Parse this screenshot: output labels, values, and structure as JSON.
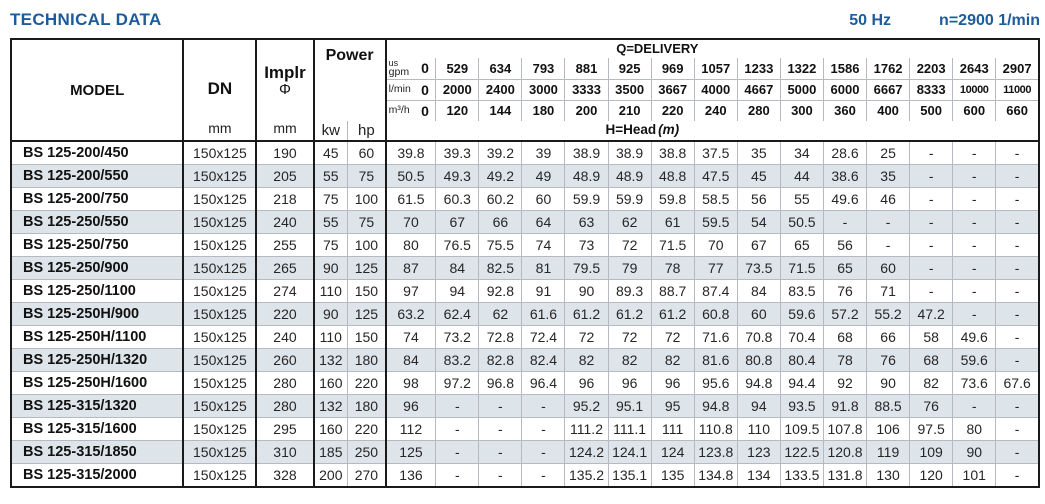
{
  "page": {
    "title": "TECHNICAL DATA",
    "frequency": "50 Hz",
    "speed": "n=2900 1/min"
  },
  "colors": {
    "accent_blue": "#1d5b9b",
    "row_stripe": "#dde4ea",
    "grid_line": "#b5bac0",
    "border_dark": "#1a1a1a"
  },
  "table": {
    "model_header": "MODEL",
    "dn_header": "DN",
    "dn_unit": "mm",
    "impeller_header": "Implr",
    "impeller_symbol": "Φ",
    "impeller_unit": "mm",
    "power_header": "Power",
    "power_units": [
      "kw",
      "hp"
    ],
    "delivery_header": "Q=DELIVERY",
    "head_label": "H=Head",
    "head_unit": "(m)",
    "flow_rows": [
      {
        "unit_top": "us",
        "unit": "gpm",
        "values": [
          "0",
          "529",
          "634",
          "793",
          "881",
          "925",
          "969",
          "1057",
          "1233",
          "1322",
          "1586",
          "1762",
          "2203",
          "2643",
          "2907"
        ]
      },
      {
        "unit": "l/min",
        "values": [
          "0",
          "2000",
          "2400",
          "3000",
          "3333",
          "3500",
          "3667",
          "4000",
          "4667",
          "5000",
          "6000",
          "6667",
          "8333",
          "10000",
          "11000"
        ]
      },
      {
        "unit": "m³/h",
        "values": [
          "0",
          "120",
          "144",
          "180",
          "200",
          "210",
          "220",
          "240",
          "280",
          "300",
          "360",
          "400",
          "500",
          "600",
          "660"
        ]
      }
    ],
    "rows": [
      {
        "model": "BS 125-200/450",
        "dn": "150x125",
        "impeller": "190",
        "kw": "45",
        "hp": "60",
        "heads": [
          "39.8",
          "39.3",
          "39.2",
          "39",
          "38.9",
          "38.9",
          "38.8",
          "37.5",
          "35",
          "34",
          "28.6",
          "25",
          "-",
          "-",
          "-"
        ]
      },
      {
        "model": "BS 125-200/550",
        "dn": "150x125",
        "impeller": "205",
        "kw": "55",
        "hp": "75",
        "heads": [
          "50.5",
          "49.3",
          "49.2",
          "49",
          "48.9",
          "48.9",
          "48.8",
          "47.5",
          "45",
          "44",
          "38.6",
          "35",
          "-",
          "-",
          "-"
        ]
      },
      {
        "model": "BS 125-200/750",
        "dn": "150x125",
        "impeller": "218",
        "kw": "75",
        "hp": "100",
        "heads": [
          "61.5",
          "60.3",
          "60.2",
          "60",
          "59.9",
          "59.9",
          "59.8",
          "58.5",
          "56",
          "55",
          "49.6",
          "46",
          "-",
          "-",
          "-"
        ]
      },
      {
        "model": "BS 125-250/550",
        "dn": "150x125",
        "impeller": "240",
        "kw": "55",
        "hp": "75",
        "heads": [
          "70",
          "67",
          "66",
          "64",
          "63",
          "62",
          "61",
          "59.5",
          "54",
          "50.5",
          "-",
          "-",
          "-",
          "-",
          "-"
        ]
      },
      {
        "model": "BS 125-250/750",
        "dn": "150x125",
        "impeller": "255",
        "kw": "75",
        "hp": "100",
        "heads": [
          "80",
          "76.5",
          "75.5",
          "74",
          "73",
          "72",
          "71.5",
          "70",
          "67",
          "65",
          "56",
          "-",
          "-",
          "-",
          "-"
        ]
      },
      {
        "model": "BS 125-250/900",
        "dn": "150x125",
        "impeller": "265",
        "kw": "90",
        "hp": "125",
        "heads": [
          "87",
          "84",
          "82.5",
          "81",
          "79.5",
          "79",
          "78",
          "77",
          "73.5",
          "71.5",
          "65",
          "60",
          "-",
          "-",
          "-"
        ]
      },
      {
        "model": "BS 125-250/1100",
        "dn": "150x125",
        "impeller": "274",
        "kw": "110",
        "hp": "150",
        "heads": [
          "97",
          "94",
          "92.8",
          "91",
          "90",
          "89.3",
          "88.7",
          "87.4",
          "84",
          "83.5",
          "76",
          "71",
          "-",
          "-",
          "-"
        ]
      },
      {
        "model": "BS 125-250H/900",
        "dn": "150x125",
        "impeller": "220",
        "kw": "90",
        "hp": "125",
        "heads": [
          "63.2",
          "62.4",
          "62",
          "61.6",
          "61.2",
          "61.2",
          "61.2",
          "60.8",
          "60",
          "59.6",
          "57.2",
          "55.2",
          "47.2",
          "-",
          "-"
        ]
      },
      {
        "model": "BS 125-250H/1100",
        "dn": "150x125",
        "impeller": "240",
        "kw": "110",
        "hp": "150",
        "heads": [
          "74",
          "73.2",
          "72.8",
          "72.4",
          "72",
          "72",
          "72",
          "71.6",
          "70.8",
          "70.4",
          "68",
          "66",
          "58",
          "49.6",
          "-"
        ]
      },
      {
        "model": "BS 125-250H/1320",
        "dn": "150x125",
        "impeller": "260",
        "kw": "132",
        "hp": "180",
        "heads": [
          "84",
          "83.2",
          "82.8",
          "82.4",
          "82",
          "82",
          "82",
          "81.6",
          "80.8",
          "80.4",
          "78",
          "76",
          "68",
          "59.6",
          "-"
        ]
      },
      {
        "model": "BS 125-250H/1600",
        "dn": "150x125",
        "impeller": "280",
        "kw": "160",
        "hp": "220",
        "heads": [
          "98",
          "97.2",
          "96.8",
          "96.4",
          "96",
          "96",
          "96",
          "95.6",
          "94.8",
          "94.4",
          "92",
          "90",
          "82",
          "73.6",
          "67.6"
        ]
      },
      {
        "model": "BS 125-315/1320",
        "dn": "150x125",
        "impeller": "280",
        "kw": "132",
        "hp": "180",
        "heads": [
          "96",
          "-",
          "-",
          "-",
          "95.2",
          "95.1",
          "95",
          "94.8",
          "94",
          "93.5",
          "91.8",
          "88.5",
          "76",
          "-",
          "-"
        ]
      },
      {
        "model": "BS 125-315/1600",
        "dn": "150x125",
        "impeller": "295",
        "kw": "160",
        "hp": "220",
        "heads": [
          "112",
          "-",
          "-",
          "-",
          "111.2",
          "111.1",
          "111",
          "110.8",
          "110",
          "109.5",
          "107.8",
          "106",
          "97.5",
          "80",
          "-"
        ]
      },
      {
        "model": "BS 125-315/1850",
        "dn": "150x125",
        "impeller": "310",
        "kw": "185",
        "hp": "250",
        "heads": [
          "125",
          "-",
          "-",
          "-",
          "124.2",
          "124.1",
          "124",
          "123.8",
          "123",
          "122.5",
          "120.8",
          "119",
          "109",
          "90",
          "-"
        ]
      },
      {
        "model": "BS 125-315/2000",
        "dn": "150x125",
        "impeller": "328",
        "kw": "200",
        "hp": "270",
        "heads": [
          "136",
          "-",
          "-",
          "-",
          "135.2",
          "135.1",
          "135",
          "134.8",
          "134",
          "133.5",
          "131.8",
          "130",
          "120",
          "101",
          "-"
        ]
      }
    ]
  }
}
